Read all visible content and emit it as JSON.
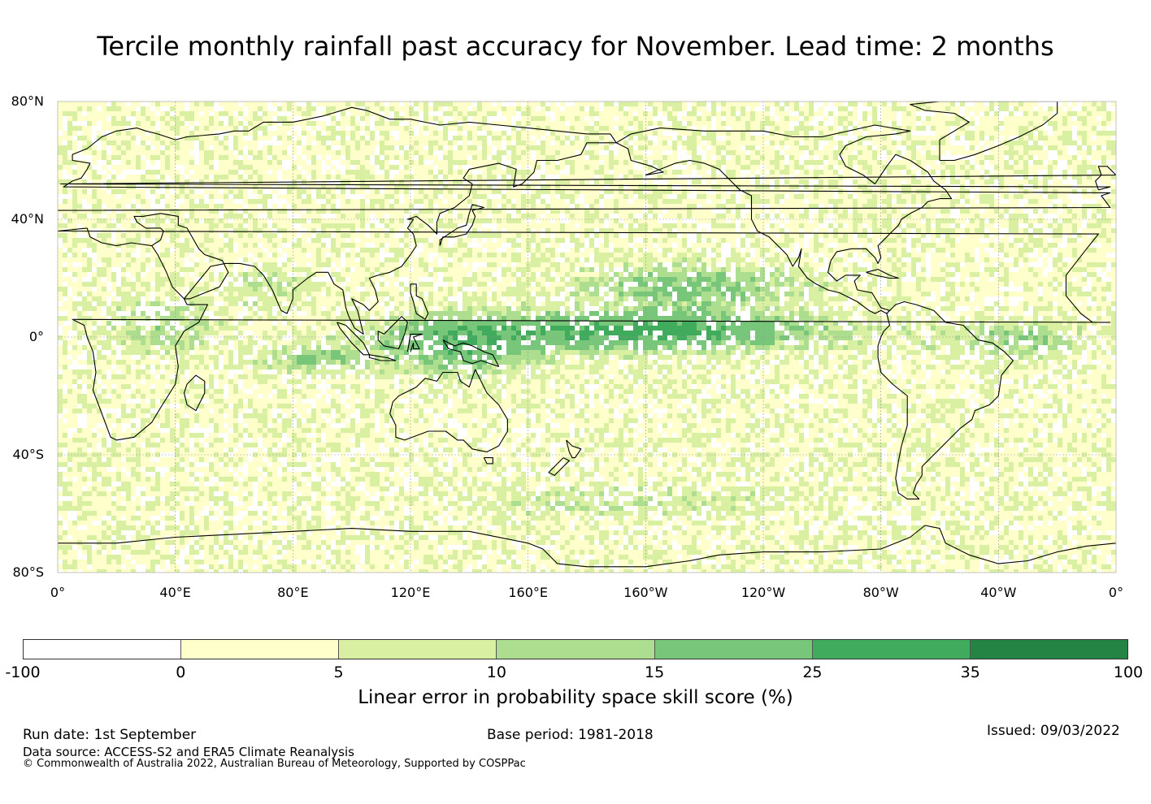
{
  "title": "Tercile monthly rainfall past accuracy for November. Lead time: 2 months",
  "map": {
    "projection": "plate-carree",
    "lon_range": [
      0,
      360
    ],
    "lat_range": [
      -80,
      80
    ],
    "lat_labels": [
      "80°N",
      "40°N",
      "0°",
      "40°S",
      "80°S"
    ],
    "lat_values": [
      80,
      40,
      0,
      -40,
      -80
    ],
    "lon_labels": [
      "0°",
      "40°E",
      "80°E",
      "120°E",
      "160°E",
      "160°W",
      "120°W",
      "80°W",
      "40°W",
      "0°"
    ],
    "lon_values": [
      0,
      40,
      80,
      120,
      160,
      200,
      240,
      280,
      320,
      360
    ],
    "gridlines": true,
    "coastline_color": "#000000"
  },
  "colorbar": {
    "label": "Linear error in probability space skill score (%)",
    "ticks": [
      "-100",
      "0",
      "5",
      "10",
      "15",
      "25",
      "35",
      "100"
    ],
    "colors": [
      "#ffffff",
      "#ffffcc",
      "#d9f0a3",
      "#addd8e",
      "#78c679",
      "#41ab5d",
      "#238443"
    ]
  },
  "footer": {
    "run_date": "Run date: 1st September",
    "base_period": "Base period: 1981-2018",
    "issued": "Issued: 09/03/2022",
    "data_source": "Data source: ACCESS-S2 and ERA5 Climate Reanalysis",
    "copyright": "© Commonwealth of Australia 2022, Australian Bureau of Meteorology, Supported by COSPPac"
  }
}
